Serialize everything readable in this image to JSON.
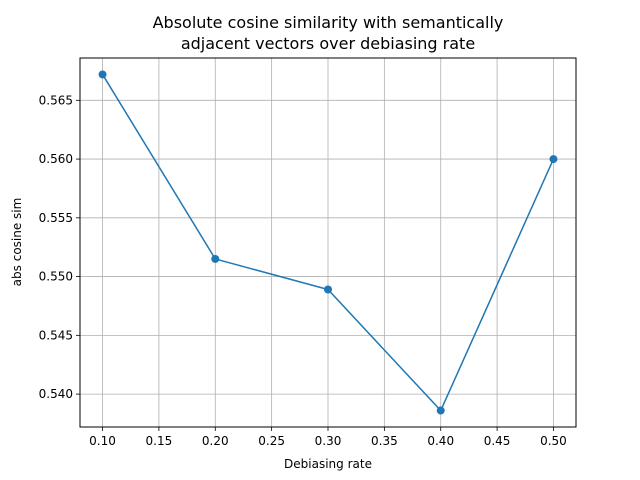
{
  "chart_data": {
    "type": "line",
    "title_lines": [
      "Absolute cosine similarity with semantically",
      "adjacent vectors over debiasing rate"
    ],
    "xlabel": "Debiasing rate",
    "ylabel": "abs cosine sim",
    "x": [
      0.1,
      0.2,
      0.3,
      0.4,
      0.5
    ],
    "series": [
      {
        "values": [
          0.5672,
          0.5515,
          0.5489,
          0.5386,
          0.56
        ],
        "color": "#1f77b4",
        "marker": "circle"
      }
    ],
    "xlim": [
      0.08,
      0.52
    ],
    "ylim": [
      0.5372,
      0.5686
    ],
    "x_ticks": [
      0.1,
      0.15,
      0.2,
      0.25,
      0.3,
      0.35,
      0.4,
      0.45,
      0.5
    ],
    "x_tick_labels": [
      "0.10",
      "0.15",
      "0.20",
      "0.25",
      "0.30",
      "0.35",
      "0.40",
      "0.45",
      "0.50"
    ],
    "y_ticks": [
      0.54,
      0.545,
      0.55,
      0.555,
      0.56,
      0.565
    ],
    "y_tick_labels": [
      "0.540",
      "0.545",
      "0.550",
      "0.555",
      "0.560",
      "0.565"
    ],
    "grid": true,
    "grid_color": "#b0b0b0",
    "axes_color": "#000000"
  }
}
